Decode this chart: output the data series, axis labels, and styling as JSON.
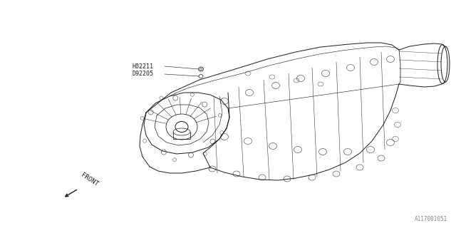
{
  "background_color": "#ffffff",
  "line_color": "#1a1a1a",
  "label_color": "#1a1a1a",
  "gray_color": "#888888",
  "part_number_1": "H02211",
  "part_number_2": "D92205",
  "diagram_code": "A117001051",
  "front_label": "FRONT",
  "fig_width": 6.4,
  "fig_height": 3.2,
  "dpi": 100
}
